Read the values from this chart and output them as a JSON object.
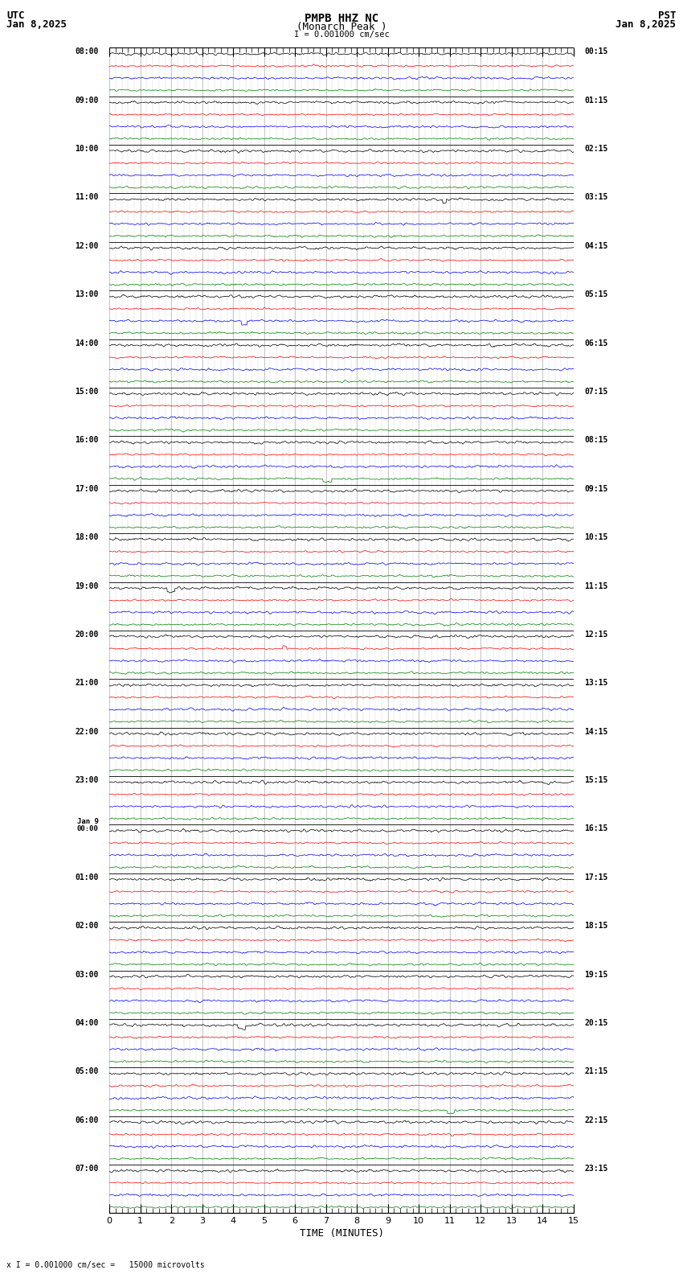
{
  "title_line1": "PMPB HHZ NC",
  "title_line2": "(Monarch Peak )",
  "scale_label": "I = 0.001000 cm/sec",
  "utc_label": "UTC",
  "pst_label": "PST",
  "date_left": "Jan 8,2025",
  "date_right": "Jan 8,2025",
  "xlabel": "TIME (MINUTES)",
  "footnote": "x I = 0.001000 cm/sec =   15000 microvolts",
  "bg_color": "#ffffff",
  "trace_colors": [
    "black",
    "red",
    "blue",
    "green"
  ],
  "left_times_utc": [
    "08:00",
    "09:00",
    "10:00",
    "11:00",
    "12:00",
    "13:00",
    "14:00",
    "15:00",
    "16:00",
    "17:00",
    "18:00",
    "19:00",
    "20:00",
    "21:00",
    "22:00",
    "23:00",
    "Jan 9\n00:00",
    "01:00",
    "02:00",
    "03:00",
    "04:00",
    "05:00",
    "06:00",
    "07:00"
  ],
  "right_times_pst": [
    "00:15",
    "01:15",
    "02:15",
    "03:15",
    "04:15",
    "05:15",
    "06:15",
    "07:15",
    "08:15",
    "09:15",
    "10:15",
    "11:15",
    "12:15",
    "13:15",
    "14:15",
    "15:15",
    "16:15",
    "17:15",
    "18:15",
    "19:15",
    "20:15",
    "21:15",
    "22:15",
    "23:15"
  ],
  "n_hours": 24,
  "traces_per_hour": 4,
  "xmin": 0,
  "xmax": 15,
  "grid_color": "#888888",
  "font_family": "monospace",
  "trace_amplitude": 0.12,
  "trace_lw": 0.5
}
